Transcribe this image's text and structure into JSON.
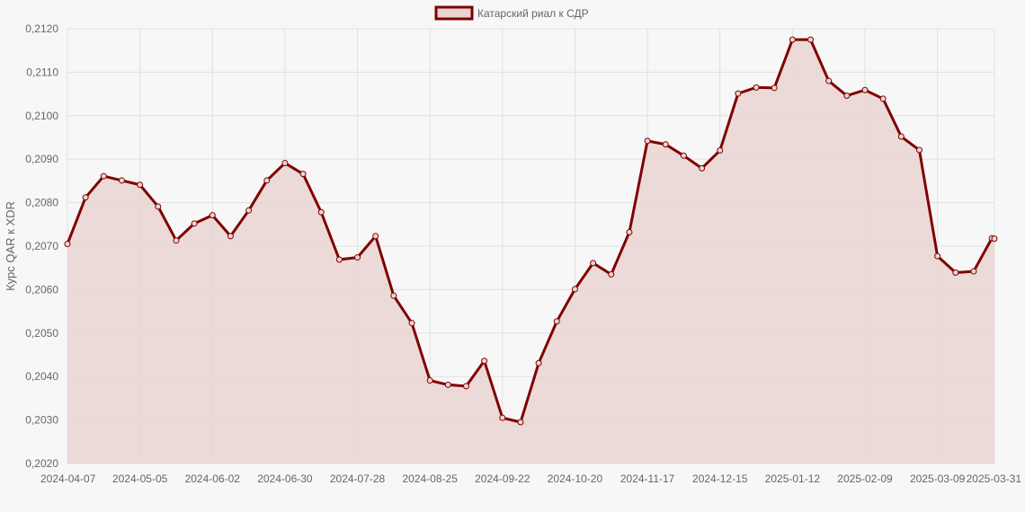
{
  "chart_data": {
    "type": "line",
    "ylabel": "Курс QAR к XDR",
    "ylim": [
      0.202,
      0.212
    ],
    "y_ticks": [
      "0,2020",
      "0,2030",
      "0,2040",
      "0,2050",
      "0,2060",
      "0,2070",
      "0,2080",
      "0,2090",
      "0,2100",
      "0,2110",
      "0,2120"
    ],
    "x_ticks": [
      "2024-04-07",
      "2024-05-05",
      "2024-06-02",
      "2024-06-30",
      "2024-07-28",
      "2024-08-25",
      "2024-09-22",
      "2024-10-20",
      "2024-11-17",
      "2024-12-15",
      "2025-01-12",
      "2025-02-09",
      "2025-03-09",
      "2025-03-31"
    ],
    "grid": true,
    "legend_position": "top-center",
    "colors": {
      "line": "#800000",
      "fill": "#e9d6d3",
      "grid": "#e0e0e0"
    },
    "series": [
      {
        "name": "Катарский риал к СДР",
        "x": [
          "2024-04-07",
          "2024-04-14",
          "2024-04-21",
          "2024-04-28",
          "2024-05-05",
          "2024-05-12",
          "2024-05-19",
          "2024-05-26",
          "2024-06-02",
          "2024-06-09",
          "2024-06-16",
          "2024-06-23",
          "2024-06-30",
          "2024-07-07",
          "2024-07-14",
          "2024-07-21",
          "2024-07-28",
          "2024-08-04",
          "2024-08-11",
          "2024-08-18",
          "2024-08-25",
          "2024-09-01",
          "2024-09-08",
          "2024-09-15",
          "2024-09-22",
          "2024-09-29",
          "2024-10-06",
          "2024-10-13",
          "2024-10-20",
          "2024-10-27",
          "2024-11-03",
          "2024-11-10",
          "2024-11-17",
          "2024-11-24",
          "2024-12-01",
          "2024-12-08",
          "2024-12-15",
          "2024-12-22",
          "2024-12-29",
          "2025-01-05",
          "2025-01-12",
          "2025-01-19",
          "2025-01-26",
          "2025-02-02",
          "2025-02-09",
          "2025-02-16",
          "2025-02-23",
          "2025-03-02",
          "2025-03-09",
          "2025-03-16",
          "2025-03-23",
          "2025-03-30",
          "2025-03-31"
        ],
        "values": [
          0.20705,
          0.20812,
          0.20861,
          0.20851,
          0.20841,
          0.20791,
          0.20713,
          0.20752,
          0.20771,
          0.20723,
          0.20782,
          0.20851,
          0.20891,
          0.20866,
          0.20778,
          0.20669,
          0.20674,
          0.20723,
          0.20586,
          0.20523,
          0.20391,
          0.20381,
          0.20378,
          0.20436,
          0.20305,
          0.20295,
          0.20431,
          0.20527,
          0.20601,
          0.20661,
          0.20635,
          0.20732,
          0.20942,
          0.20934,
          0.20908,
          0.20879,
          0.2092,
          0.21051,
          0.21065,
          0.21064,
          0.21175,
          0.21175,
          0.2108,
          0.21046,
          0.21059,
          0.21039,
          0.20952,
          0.20921,
          0.20677,
          0.20639,
          0.20642,
          0.20718,
          0.20717
        ]
      }
    ]
  }
}
